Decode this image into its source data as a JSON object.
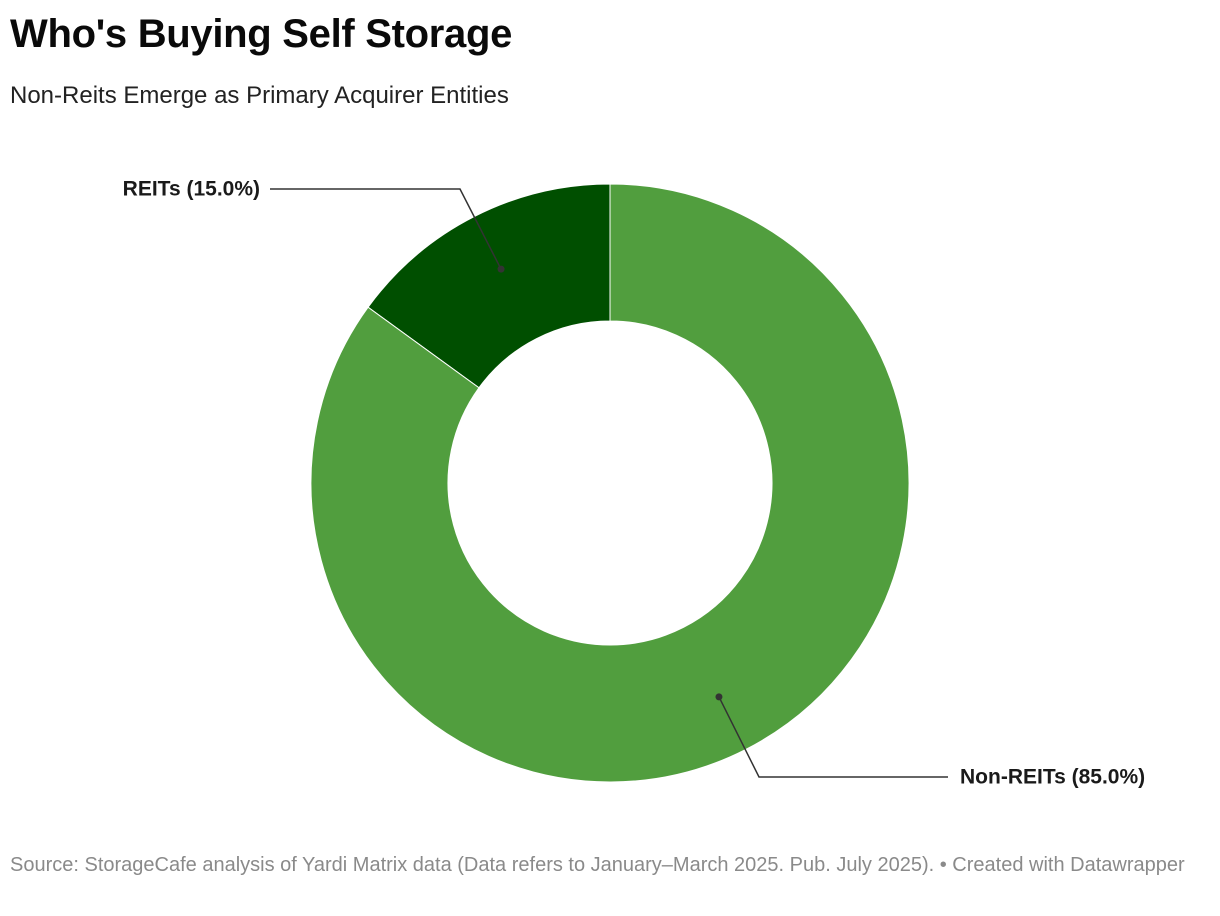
{
  "header": {
    "title": "Who's Buying Self Storage",
    "subtitle": "Non-Reits Emerge as Primary Acquirer Entities"
  },
  "footer": {
    "source": "Source: StorageCafe analysis of Yardi Matrix data (Data refers to January–March 2025. Pub. July 2025). • Created with Datawrapper"
  },
  "chart_data": {
    "type": "pie",
    "variant": "donut",
    "title": "Who's Buying Self Storage",
    "subtitle": "Non-Reits Emerge as Primary Acquirer Entities",
    "slices": [
      {
        "name": "REITs",
        "value": 15.0,
        "label": "REITs (15.0%)",
        "color": "#004f00"
      },
      {
        "name": "Non-REITs",
        "value": 85.0,
        "label": "Non-REITs (85.0%)",
        "color": "#519e3e"
      }
    ],
    "label_placement": "outside with leader lines"
  }
}
